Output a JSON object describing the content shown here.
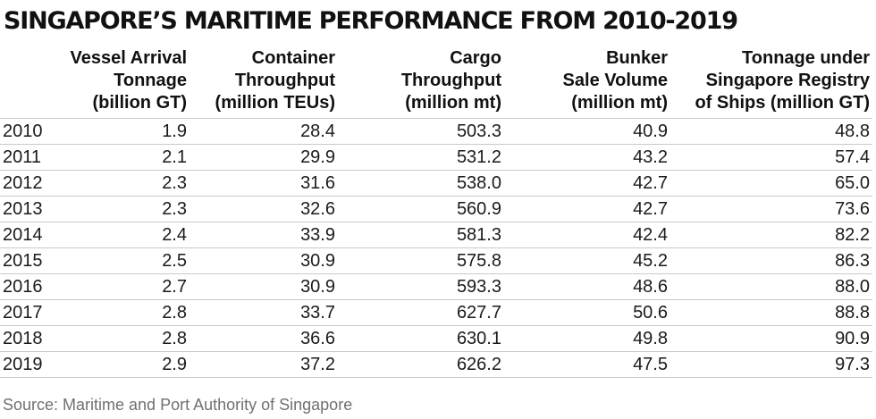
{
  "title": "SINGAPORE’S MARITIME PERFORMANCE FROM 2010-2019",
  "source": "Source: Maritime and Port Authority of Singapore",
  "colors": {
    "text": "#1a1a1a",
    "rule": "#c9c9c9",
    "source": "#707070"
  },
  "chart_data": {
    "type": "table",
    "title": "SINGAPORE’S MARITIME PERFORMANCE FROM 2010-2019",
    "columns": [
      {
        "key": "year",
        "header_lines": []
      },
      {
        "key": "vessel_arrival_tonnage",
        "header_lines": [
          "Vessel Arrival",
          "Tonnage",
          "(billion GT)"
        ]
      },
      {
        "key": "container_throughput",
        "header_lines": [
          "Container",
          "Throughput",
          "(million TEUs)"
        ]
      },
      {
        "key": "cargo_throughput",
        "header_lines": [
          "Cargo",
          "Throughput",
          "(million mt)"
        ]
      },
      {
        "key": "bunker_sale_volume",
        "header_lines": [
          "Bunker",
          "Sale Volume",
          "(million mt)"
        ]
      },
      {
        "key": "registry_tonnage",
        "header_lines": [
          "Tonnage under",
          "Singapore Registry",
          "of Ships (million GT)"
        ]
      }
    ],
    "rows": [
      [
        "2010",
        "1.9",
        "28.4",
        "503.3",
        "40.9",
        "48.8"
      ],
      [
        "2011",
        "2.1",
        "29.9",
        "531.2",
        "43.2",
        "57.4"
      ],
      [
        "2012",
        "2.3",
        "31.6",
        "538.0",
        "42.7",
        "65.0"
      ],
      [
        "2013",
        "2.3",
        "32.6",
        "560.9",
        "42.7",
        "73.6"
      ],
      [
        "2014",
        "2.4",
        "33.9",
        "581.3",
        "42.4",
        "82.2"
      ],
      [
        "2015",
        "2.5",
        "30.9",
        "575.8",
        "45.2",
        "86.3"
      ],
      [
        "2016",
        "2.7",
        "30.9",
        "593.3",
        "48.6",
        "88.0"
      ],
      [
        "2017",
        "2.8",
        "33.7",
        "627.7",
        "50.6",
        "88.8"
      ],
      [
        "2018",
        "2.8",
        "36.6",
        "630.1",
        "49.8",
        "90.9"
      ],
      [
        "2019",
        "2.9",
        "37.2",
        "626.2",
        "47.5",
        "97.3"
      ]
    ]
  }
}
